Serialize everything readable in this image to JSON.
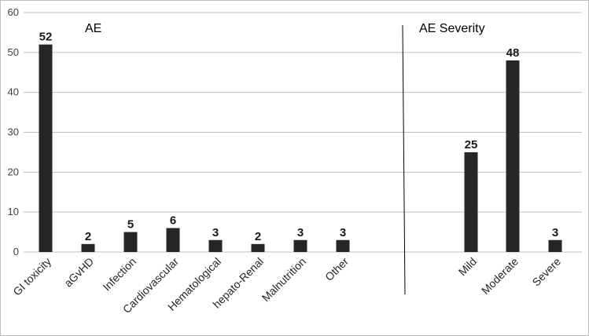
{
  "chart_data": {
    "type": "bar",
    "ylim": [
      0,
      60
    ],
    "yticks": [
      "0",
      "10",
      "20",
      "30",
      "40",
      "50",
      "60"
    ],
    "grid": true,
    "bar_color": "#262626",
    "grid_color": "#bfbfbf",
    "panels": [
      {
        "title": "AE",
        "categories": [
          "GI toxicity",
          "aGvHD",
          "Infection",
          "Cardiovascular",
          "Hematological",
          "hepato-Renal",
          "Malnutrition",
          "Other"
        ],
        "values": [
          52,
          2,
          5,
          6,
          3,
          2,
          3,
          3
        ],
        "labels": [
          "52",
          "2",
          "5",
          "6",
          "3",
          "2",
          "3",
          "3"
        ]
      },
      {
        "title": "AE Severity",
        "categories": [
          "Mild",
          "Moderate",
          "Severe"
        ],
        "values": [
          25,
          48,
          3
        ],
        "labels": [
          "25",
          "48",
          "3"
        ]
      }
    ]
  }
}
